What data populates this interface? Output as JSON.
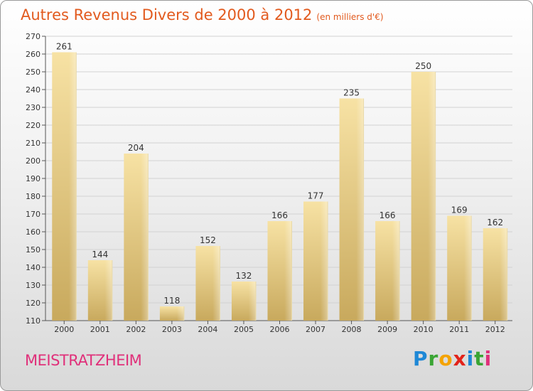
{
  "header": {
    "title": "Autres Revenus Divers de 2000 à 2012",
    "subtitle": "(en milliers d'€)"
  },
  "footer": {
    "town": "MEISTRATZHEIM",
    "logo_text": "Proxiti"
  },
  "colors": {
    "title": "#e25a1e",
    "town": "#e0307a",
    "bar_light": "#f6df9e",
    "bar_dark": "#c7a95e"
  },
  "chart_data": {
    "type": "bar",
    "categories": [
      "2000",
      "2001",
      "2002",
      "2003",
      "2004",
      "2005",
      "2006",
      "2007",
      "2008",
      "2009",
      "2010",
      "2011",
      "2012"
    ],
    "values": [
      261,
      144,
      204,
      118,
      152,
      132,
      166,
      177,
      235,
      166,
      250,
      169,
      162
    ],
    "title": "Autres Revenus Divers de 2000 à 2012",
    "subtitle": "(en milliers d'€)",
    "ylim": [
      110,
      270
    ],
    "yticks": [
      110,
      120,
      130,
      140,
      150,
      160,
      170,
      180,
      190,
      200,
      210,
      220,
      230,
      240,
      250,
      260,
      270
    ],
    "grid": true,
    "legend": "none"
  }
}
